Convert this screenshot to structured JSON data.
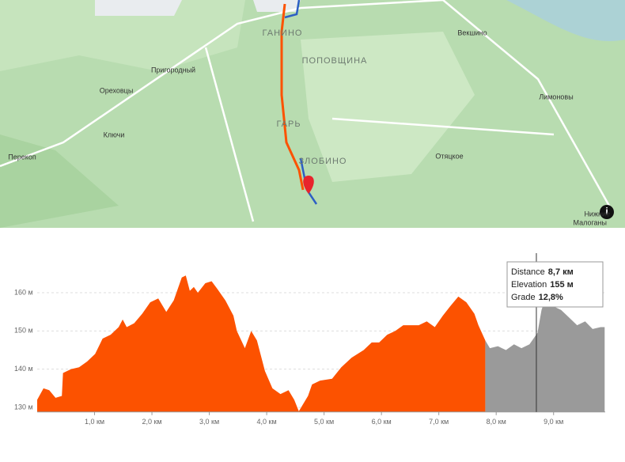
{
  "map": {
    "labels": [
      {
        "text": "ГАНИНО",
        "kind": "district"
      },
      {
        "text": "ПОПОВЩИНА",
        "kind": "district"
      },
      {
        "text": "ГАРЬ",
        "kind": "district"
      },
      {
        "text": "ЗЛОБИНО",
        "kind": "district"
      },
      {
        "text": "Векшино",
        "kind": "village"
      },
      {
        "text": "Пригородный",
        "kind": "village"
      },
      {
        "text": "Ореховцы",
        "kind": "village"
      },
      {
        "text": "Лимоновы",
        "kind": "village"
      },
      {
        "text": "Ключи",
        "kind": "village"
      },
      {
        "text": "Перекоп",
        "kind": "village"
      },
      {
        "text": "Отяцкое",
        "kind": "village"
      },
      {
        "text": "Нижние",
        "kind": "village"
      },
      {
        "text": "Малоганы",
        "kind": "village"
      }
    ]
  },
  "chart_data": {
    "type": "area",
    "x": [
      0,
      0.11,
      0.21,
      0.32,
      0.43,
      0.45,
      0.59,
      0.73,
      0.87,
      1.01,
      1.14,
      1.28,
      1.42,
      1.49,
      1.56,
      1.69,
      1.83,
      1.97,
      2.11,
      2.25,
      2.38,
      2.52,
      2.59,
      2.66,
      2.73,
      2.8,
      2.93,
      3.04,
      3.14,
      3.28,
      3.42,
      3.48,
      3.62,
      3.73,
      3.83,
      3.97,
      4.1,
      4.24,
      4.38,
      4.48,
      4.56,
      4.72,
      4.79,
      4.93,
      5.14,
      5.3,
      5.48,
      5.69,
      5.83,
      5.96,
      6.1,
      6.24,
      6.38,
      6.65,
      6.79,
      6.93,
      7.07,
      7.2,
      7.34,
      7.48,
      7.62,
      7.69,
      7.81,
      7.89,
      8.03,
      8.17,
      8.31,
      8.44,
      8.58,
      8.72,
      8.79,
      8.86,
      8.99,
      9.13,
      9.27,
      9.41,
      9.55,
      9.68,
      9.82,
      9.89
    ],
    "series": [
      {
        "color": "#fc5200",
        "values": [
          132,
          135,
          134.5,
          132.5,
          133,
          139,
          140,
          140.5,
          142,
          144,
          148,
          149,
          151,
          153,
          151,
          152,
          154.5,
          157.5,
          158.5,
          155,
          158,
          164,
          164.5,
          160.5,
          161.5,
          160,
          162.5,
          163,
          161,
          158,
          154,
          150,
          145.5,
          150,
          147.5,
          139.5,
          135,
          133.5,
          134.5,
          132,
          129,
          133,
          136,
          137,
          137.5,
          140.5,
          143,
          145,
          147,
          147,
          149,
          150,
          151.5,
          151.5,
          152.5,
          151,
          154,
          156.5,
          159,
          157.5,
          154.5,
          151.5,
          147.5,
          null,
          null,
          null,
          null,
          null,
          null,
          null,
          null,
          null,
          null,
          null,
          null,
          null,
          null,
          null,
          null,
          null
        ]
      },
      {
        "color": "#9a9a9a",
        "values": [
          null,
          null,
          null,
          null,
          null,
          null,
          null,
          null,
          null,
          null,
          null,
          null,
          null,
          null,
          null,
          null,
          null,
          null,
          null,
          null,
          null,
          null,
          null,
          null,
          null,
          null,
          null,
          null,
          null,
          null,
          null,
          null,
          null,
          null,
          null,
          null,
          null,
          null,
          null,
          null,
          null,
          null,
          null,
          null,
          null,
          null,
          null,
          null,
          null,
          null,
          null,
          null,
          null,
          null,
          null,
          null,
          null,
          null,
          null,
          null,
          null,
          null,
          147.5,
          145.5,
          146,
          145,
          146.5,
          145.5,
          146.5,
          149.5,
          155.5,
          158.5,
          156.5,
          155.5,
          153.5,
          151.5,
          152.5,
          150.5,
          151,
          151
        ]
      }
    ],
    "xlim": [
      0,
      9.9
    ],
    "ylim": [
      128.8,
      170
    ],
    "xticks": [
      {
        "value": 1,
        "label": "1,0 км"
      },
      {
        "value": 2,
        "label": "2,0 км"
      },
      {
        "value": 3,
        "label": "3,0 км"
      },
      {
        "value": 4,
        "label": "4,0 км"
      },
      {
        "value": 5,
        "label": "5,0 км"
      },
      {
        "value": 6,
        "label": "6,0 км"
      },
      {
        "value": 7,
        "label": "7,0 км"
      },
      {
        "value": 8,
        "label": "8,0 км"
      },
      {
        "value": 9,
        "label": "9,0 км"
      }
    ],
    "yticks": [
      {
        "value": 130,
        "label": "130 м"
      },
      {
        "value": 140,
        "label": "140 м"
      },
      {
        "value": 150,
        "label": "150 м"
      },
      {
        "value": 160,
        "label": "160 м"
      }
    ],
    "grid": true,
    "cursor": {
      "value": 8.7,
      "label": "8,7 км"
    },
    "tooltip": [
      {
        "name": "Distance",
        "value": "8,7 км"
      },
      {
        "name": "Elevation",
        "value": "155 м"
      },
      {
        "name": "Grade",
        "value": "12,8%"
      }
    ]
  }
}
